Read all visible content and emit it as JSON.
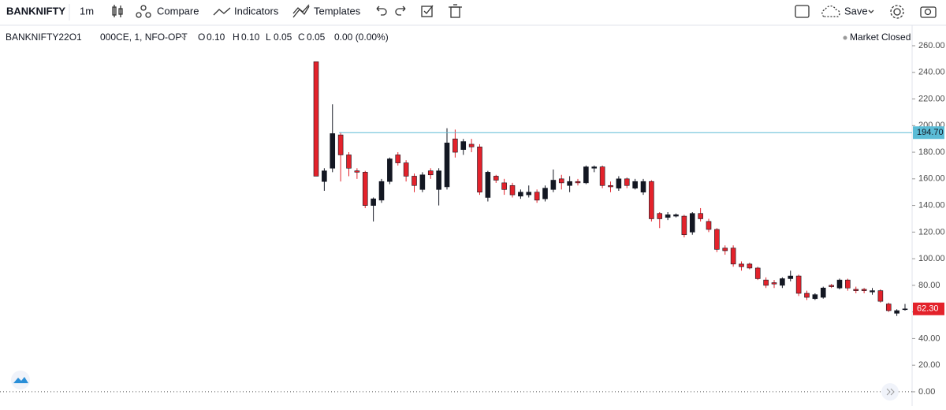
{
  "toolbar": {
    "symbol": "BANKNIFTY",
    "interval": "1m",
    "compare": "Compare",
    "indicators": "Indicators",
    "templates": "Templates",
    "save": "Save"
  },
  "legend": {
    "symbol_start": "BANKNIFTY22O1",
    "symbol_end": "000CE, 1, NFO-OPT",
    "o_label": "O",
    "o": "0.10",
    "h_label": "H",
    "h": "0.10",
    "l_label": "L",
    "l": "0.05",
    "c_label": "C",
    "c": "0.05",
    "change": "0.00 (0.00%)",
    "status": "Market Closed"
  },
  "chart_data": {
    "type": "candlestick",
    "up_color": "#131722",
    "down_color": "#e3222b",
    "open": [
      248,
      158,
      168,
      193,
      178,
      166,
      165,
      140,
      144,
      158,
      178,
      172,
      162,
      152,
      166,
      152,
      154,
      190,
      182,
      186,
      184,
      146,
      162,
      157,
      155,
      147,
      148,
      150,
      145,
      152,
      160,
      155,
      158,
      157,
      168,
      169,
      155,
      153,
      160,
      153,
      150,
      158,
      134,
      131,
      132,
      132,
      120,
      134,
      128,
      122,
      108,
      108,
      96,
      96,
      93,
      84,
      82,
      80,
      85,
      87,
      74,
      70,
      71,
      80,
      78,
      84,
      77,
      77,
      75,
      76,
      66,
      59,
      62
    ],
    "high": [
      248,
      168,
      216,
      195,
      180,
      168,
      166,
      146,
      160,
      176,
      180,
      174,
      164,
      165,
      168,
      168,
      198,
      197,
      190,
      190,
      186,
      166,
      163,
      160,
      157,
      152,
      155,
      152,
      155,
      167,
      163,
      162,
      160,
      170,
      170,
      170,
      158,
      162,
      161,
      160,
      160,
      159,
      135,
      135,
      134,
      133,
      135,
      138,
      130,
      123,
      110,
      110,
      98,
      97,
      94,
      86,
      84,
      86,
      91,
      88,
      76,
      74,
      79,
      81,
      85,
      85,
      79,
      78,
      78,
      77,
      67,
      62,
      66
    ],
    "low": [
      162,
      151,
      165,
      158,
      162,
      160,
      138,
      128,
      142,
      156,
      170,
      158,
      150,
      150,
      160,
      140,
      152,
      176,
      178,
      180,
      148,
      143,
      157,
      148,
      146,
      145,
      146,
      142,
      143,
      150,
      152,
      150,
      155,
      156,
      165,
      153,
      150,
      151,
      153,
      152,
      148,
      128,
      123,
      129,
      131,
      116,
      118,
      128,
      120,
      105,
      103,
      94,
      91,
      92,
      84,
      78,
      78,
      78,
      83,
      72,
      69,
      69,
      70,
      78,
      77,
      76,
      74,
      74,
      73,
      67,
      60,
      57,
      61
    ],
    "close": [
      162,
      166,
      194,
      178,
      168,
      165,
      140,
      145,
      158,
      175,
      172,
      162,
      155,
      163,
      163,
      166,
      187,
      180,
      188,
      184,
      150,
      165,
      159,
      152,
      148,
      150,
      150,
      144,
      153,
      159,
      157,
      158,
      157,
      169,
      169,
      155,
      154,
      160,
      155,
      158,
      158,
      130,
      130,
      133,
      133,
      118,
      134,
      130,
      122,
      107,
      106,
      96,
      94,
      93,
      85,
      80,
      81,
      85,
      87,
      74,
      71,
      73,
      78,
      79,
      84,
      78,
      76,
      76,
      76,
      68,
      61,
      61,
      62.3
    ],
    "ylim": [
      -10.7,
      275.4
    ],
    "yticks": [
      {
        "value": 0,
        "label": "0.00"
      },
      {
        "value": 20,
        "label": "20.00"
      },
      {
        "value": 40,
        "label": "40.00"
      },
      {
        "value": 60,
        "label": "60.00"
      },
      {
        "value": 80,
        "label": "80.00"
      },
      {
        "value": 100,
        "label": "100.00"
      },
      {
        "value": 120,
        "label": "120.00"
      },
      {
        "value": 140,
        "label": "140.00"
      },
      {
        "value": 160,
        "label": "160.00"
      },
      {
        "value": 180,
        "label": "180.00"
      },
      {
        "value": 200,
        "label": "200.00"
      },
      {
        "value": 220,
        "label": "220.00"
      },
      {
        "value": 240,
        "label": "240.00"
      },
      {
        "value": 260,
        "label": "260.00"
      }
    ],
    "price_lines": [
      {
        "value": 194.7,
        "label": "194.70",
        "color": "#5bbcd6",
        "line": true
      },
      {
        "value": 62.3,
        "label": "62.30",
        "color": "#e3222b",
        "line": false
      }
    ]
  }
}
